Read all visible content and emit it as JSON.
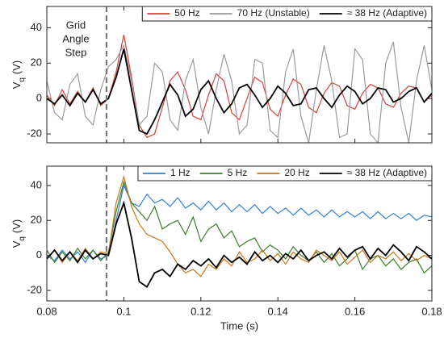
{
  "chart_data": [
    {
      "type": "line",
      "ylabel": [
        "V",
        "q",
        "(V)"
      ],
      "annotation": [
        "Grid",
        "Angle",
        "Step"
      ],
      "event_x": 0.0955,
      "legend": "upper right",
      "xlim": [
        0.08,
        0.18
      ],
      "xticks": [
        0.08,
        0.1,
        0.12,
        0.14,
        0.16,
        0.18
      ],
      "ylim": [
        -25,
        52
      ],
      "yticks": [
        -20,
        0,
        20,
        40
      ],
      "x": [
        0.08,
        0.082,
        0.084,
        0.086,
        0.088,
        0.09,
        0.092,
        0.094,
        0.096,
        0.098,
        0.1,
        0.102,
        0.104,
        0.106,
        0.108,
        0.11,
        0.112,
        0.114,
        0.116,
        0.118,
        0.12,
        0.122,
        0.124,
        0.126,
        0.128,
        0.13,
        0.132,
        0.134,
        0.136,
        0.138,
        0.14,
        0.142,
        0.144,
        0.146,
        0.148,
        0.15,
        0.152,
        0.154,
        0.156,
        0.158,
        0.16,
        0.162,
        0.164,
        0.166,
        0.168,
        0.17,
        0.172,
        0.174,
        0.176,
        0.178,
        0.18
      ],
      "series": [
        {
          "name": "50 Hz",
          "color": "#d9413a",
          "values": [
            2,
            -4,
            5,
            -3,
            4,
            -2,
            6,
            -4,
            0,
            15,
            36,
            12,
            -15,
            -22,
            -20,
            -5,
            10,
            15,
            5,
            -10,
            -12,
            2,
            14,
            10,
            -8,
            -12,
            0,
            12,
            9,
            -6,
            -10,
            2,
            11,
            8,
            -5,
            -8,
            3,
            9,
            7,
            -4,
            -6,
            3,
            8,
            6,
            -3,
            -5,
            3,
            7,
            6,
            -2,
            2
          ]
        },
        {
          "name": "70 Hz (Unstable)",
          "color": "#9a9a9a",
          "values": [
            10,
            -8,
            -12,
            8,
            14,
            -10,
            -15,
            5,
            18,
            22,
            30,
            10,
            -15,
            -10,
            20,
            15,
            -12,
            -18,
            10,
            22,
            -5,
            -20,
            5,
            25,
            10,
            -20,
            -15,
            22,
            20,
            -18,
            -22,
            15,
            28,
            -10,
            -25,
            5,
            30,
            10,
            -22,
            -20,
            28,
            22,
            -20,
            -25,
            20,
            32,
            -5,
            -25,
            10,
            30,
            5
          ]
        },
        {
          "name": "≈ 38 Hz (Adaptive)",
          "color": "#000000",
          "values": [
            0,
            -3,
            2,
            -4,
            3,
            -2,
            5,
            -3,
            0,
            12,
            28,
            5,
            -18,
            -20,
            -12,
            -2,
            8,
            2,
            -10,
            -6,
            5,
            10,
            0,
            -8,
            -3,
            6,
            8,
            2,
            -5,
            0,
            7,
            3,
            -4,
            -3,
            5,
            6,
            0,
            -5,
            2,
            7,
            4,
            -3,
            0,
            6,
            5,
            -2,
            0,
            4,
            6,
            -2,
            3
          ]
        }
      ]
    },
    {
      "type": "line",
      "ylabel": [
        "V",
        "q",
        "(V)"
      ],
      "xlabel": "Time (s)",
      "event_x": 0.0955,
      "legend": "upper right",
      "xlim": [
        0.08,
        0.18
      ],
      "xticks": [
        0.08,
        0.1,
        0.12,
        0.14,
        0.16,
        0.18
      ],
      "ylim": [
        -26,
        51
      ],
      "yticks": [
        -20,
        0,
        20,
        40
      ],
      "x": [
        0.08,
        0.082,
        0.084,
        0.086,
        0.088,
        0.09,
        0.092,
        0.094,
        0.096,
        0.098,
        0.1,
        0.102,
        0.104,
        0.106,
        0.108,
        0.11,
        0.112,
        0.114,
        0.116,
        0.118,
        0.12,
        0.122,
        0.124,
        0.126,
        0.128,
        0.13,
        0.132,
        0.134,
        0.136,
        0.138,
        0.14,
        0.142,
        0.144,
        0.146,
        0.148,
        0.15,
        0.152,
        0.154,
        0.156,
        0.158,
        0.16,
        0.162,
        0.164,
        0.166,
        0.168,
        0.17,
        0.172,
        0.174,
        0.176,
        0.178,
        0.18
      ],
      "series": [
        {
          "name": "1 Hz",
          "color": "#2f7fd9",
          "values": [
            0,
            -3,
            3,
            -2,
            2,
            -4,
            3,
            -2,
            0,
            20,
            40,
            30,
            28,
            35,
            30,
            32,
            28,
            33,
            27,
            30,
            26,
            31,
            26,
            30,
            25,
            29,
            25,
            29,
            24,
            28,
            24,
            27,
            23,
            27,
            23,
            26,
            22,
            26,
            22,
            25,
            22,
            25,
            21,
            25,
            21,
            24,
            21,
            24,
            20,
            23,
            22
          ]
        },
        {
          "name": "5 Hz",
          "color": "#3a7d2a",
          "values": [
            3,
            -4,
            2,
            -3,
            4,
            -2,
            3,
            -3,
            2,
            25,
            42,
            30,
            25,
            20,
            28,
            15,
            18,
            20,
            12,
            22,
            8,
            15,
            18,
            10,
            14,
            5,
            8,
            10,
            2,
            6,
            3,
            -2,
            5,
            0,
            -3,
            2,
            -4,
            1,
            -6,
            -2,
            3,
            -8,
            -2,
            0,
            -6,
            -2,
            -8,
            -4,
            -2,
            -10,
            -6
          ]
        },
        {
          "name": "20 Hz",
          "color": "#c8781a",
          "values": [
            -2,
            3,
            -4,
            2,
            -3,
            4,
            -2,
            2,
            1,
            30,
            45,
            28,
            18,
            12,
            10,
            8,
            2,
            -5,
            -10,
            -8,
            -12,
            -5,
            -8,
            -2,
            -6,
            2,
            -4,
            -2,
            3,
            -3,
            1,
            -5,
            2,
            -2,
            -4,
            3,
            0,
            -3,
            2,
            -5,
            -1,
            3,
            -4,
            0,
            -2,
            2,
            -3,
            1,
            -3,
            0,
            -2
          ]
        },
        {
          "name": "≈ 38 Hz (Adaptive)",
          "color": "#000000",
          "values": [
            -2,
            3,
            -3,
            2,
            -4,
            3,
            -2,
            1,
            0,
            18,
            30,
            10,
            -15,
            -18,
            -10,
            -8,
            -12,
            -5,
            -8,
            -3,
            -6,
            -2,
            -7,
            0,
            -4,
            -1,
            -5,
            2,
            -3,
            0,
            -4,
            1,
            -2,
            3,
            -3,
            0,
            2,
            -2,
            4,
            -1,
            3,
            5,
            -2,
            4,
            0,
            6,
            2,
            -3,
            5,
            2,
            -2
          ]
        }
      ]
    }
  ]
}
